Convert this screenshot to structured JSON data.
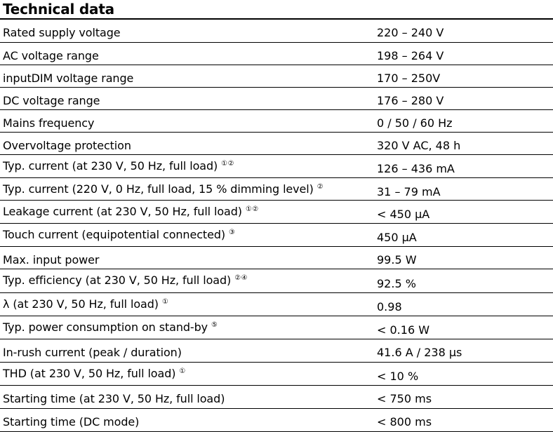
{
  "title": "Technical data",
  "rows": [
    {
      "param": "Rated supply voltage",
      "notes": "",
      "value": "220 – 240 V"
    },
    {
      "param": "AC voltage range",
      "notes": "",
      "value": "198 – 264 V"
    },
    {
      "param": "inputDIM voltage range",
      "notes": "",
      "value": "170 – 250V"
    },
    {
      "param": "DC voltage range",
      "notes": "",
      "value": "176 – 280 V"
    },
    {
      "param": "Mains frequency",
      "notes": "",
      "value": "0 / 50 / 60 Hz"
    },
    {
      "param": "Overvoltage protection",
      "notes": "",
      "value": "320 V AC, 48 h"
    },
    {
      "param": "Typ. current (at 230 V, 50 Hz, full load)",
      "notes": "①②",
      "value": "126 – 436 mA"
    },
    {
      "param": "Typ. current (220 V, 0 Hz, full load, 15 % dimming level)",
      "notes": "②",
      "value": "31 – 79 mA"
    },
    {
      "param": "Leakage current (at 230 V, 50 Hz, full load)",
      "notes": "①②",
      "value": "< 450 µA"
    },
    {
      "param": "Touch current (equipotential connected)",
      "notes": "③",
      "value": "450 µA"
    },
    {
      "param": "Max. input power",
      "notes": "",
      "value": "99.5 W"
    },
    {
      "param": "Typ. efficiency (at 230 V, 50 Hz, full load)",
      "notes": "②④",
      "value": "92.5 %"
    },
    {
      "param": "λ (at 230 V, 50 Hz, full load)",
      "notes": "①",
      "value": "0.98"
    },
    {
      "param": "Typ. power consumption on stand-by",
      "notes": "⑤",
      "value": "< 0.16 W"
    },
    {
      "param": "In-rush current (peak / duration)",
      "notes": "",
      "value": "41.6 A / 238 µs"
    },
    {
      "param": "THD (at 230 V, 50 Hz, full load)",
      "notes": "①",
      "value": "< 10 %"
    },
    {
      "param": "Starting time (at 230 V, 50 Hz, full load)",
      "notes": "",
      "value": "< 750 ms"
    },
    {
      "param": "Starting time (DC mode)",
      "notes": "",
      "value": "< 800 ms"
    }
  ]
}
